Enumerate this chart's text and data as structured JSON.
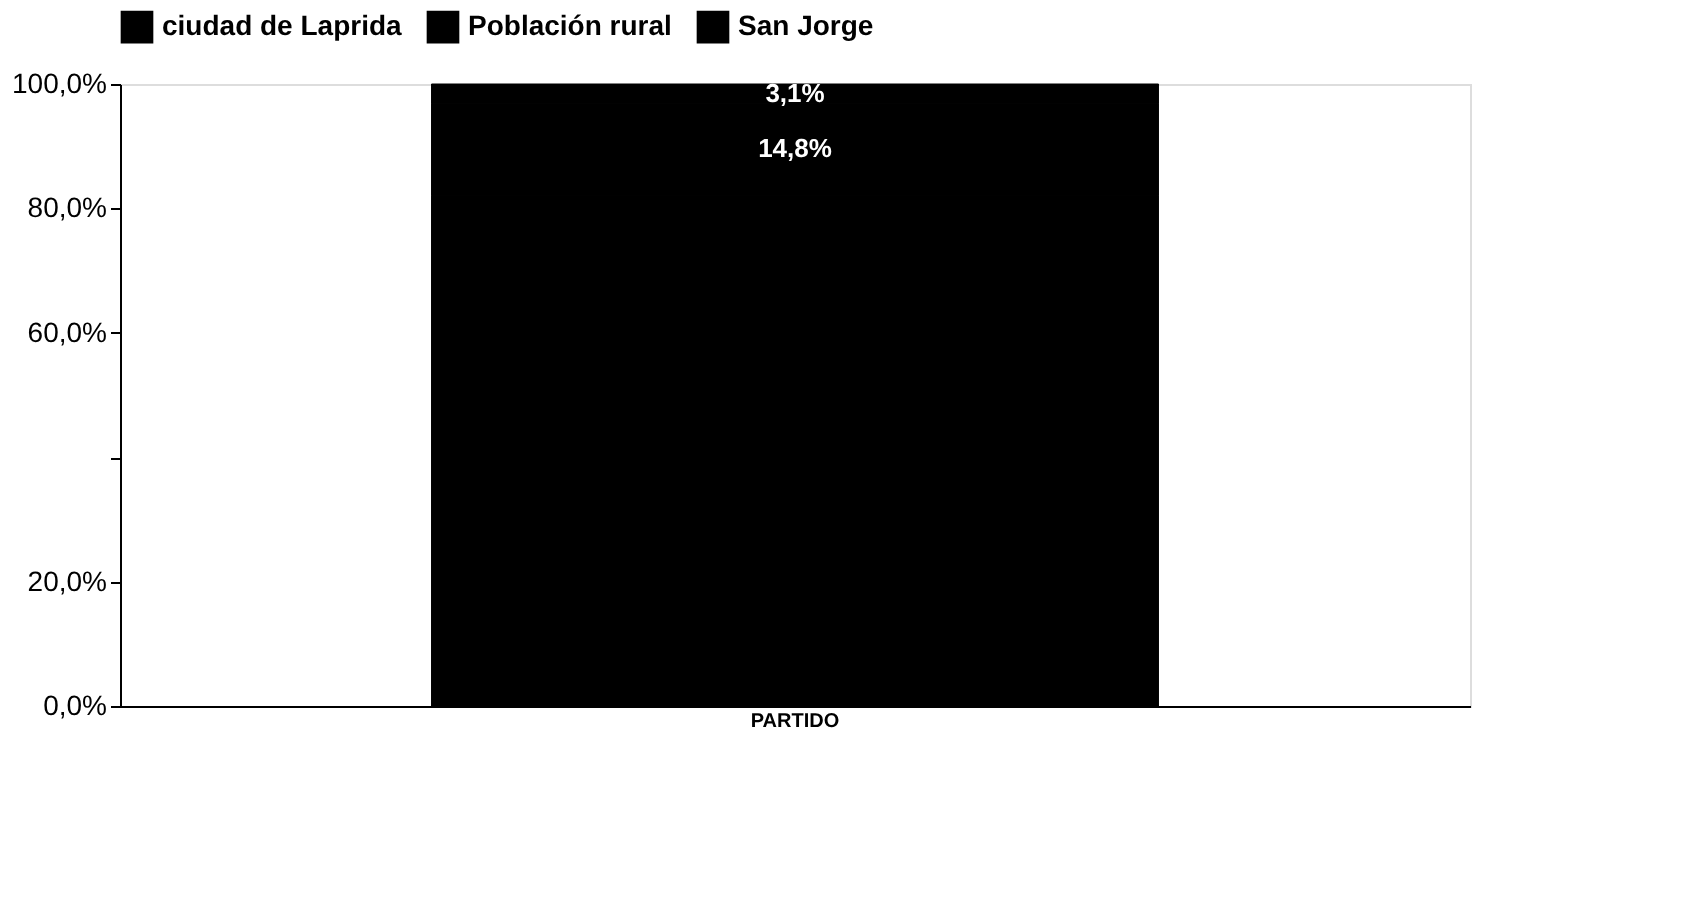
{
  "chart_data": {
    "type": "bar",
    "stacked": true,
    "categories": [
      "PARTIDO"
    ],
    "series": [
      {
        "name": "ciudad de Laprida",
        "color": "#000000",
        "values": [
          82.1
        ],
        "value_labels": [
          null
        ]
      },
      {
        "name": "Población rural",
        "color": "#000000",
        "values": [
          14.8
        ],
        "value_labels": [
          "14,8%"
        ]
      },
      {
        "name": "San Jorge",
        "color": "#000000",
        "values": [
          3.1
        ],
        "value_labels": [
          "3,1%"
        ]
      }
    ],
    "ylim": [
      0,
      100
    ],
    "yticks": [
      {
        "value": 0,
        "label": "0,0%"
      },
      {
        "value": 20,
        "label": "20,0%"
      },
      {
        "value": 40,
        "label": null
      },
      {
        "value": 60,
        "label": "60,0%"
      },
      {
        "value": 80,
        "label": "80,0%"
      },
      {
        "value": 100,
        "label": "100,0%"
      }
    ],
    "legend": "top",
    "grid": false
  }
}
